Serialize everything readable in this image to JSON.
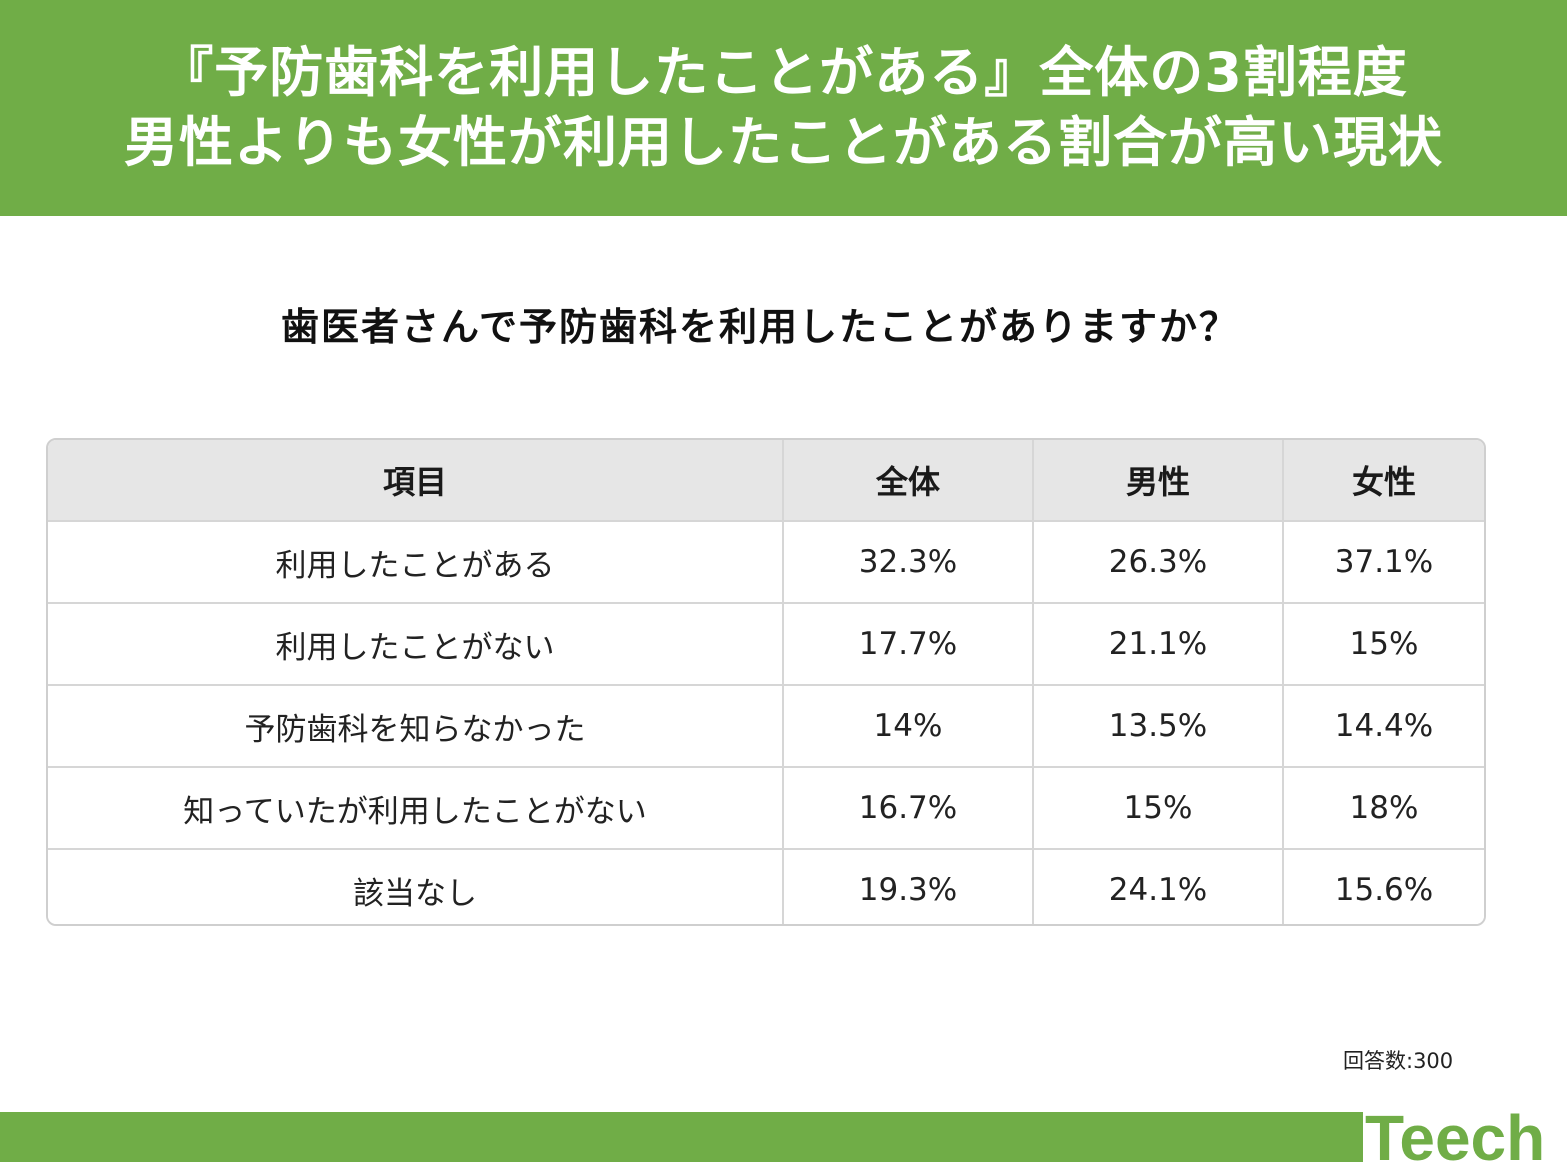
{
  "header": {
    "line1": "『予防歯科を利用したことがある』全体の3割程度",
    "line2": "男性よりも女性が利用したことがある割合が高い現状"
  },
  "question": "歯医者さんで予防歯科を利用したことがありますか？",
  "table": {
    "headers": [
      "項目",
      "全体",
      "男性",
      "女性"
    ],
    "rows": [
      [
        "利用したことがある",
        "32.3%",
        "26.3%",
        "37.1%"
      ],
      [
        "利用したことがない",
        "17.7%",
        "21.1%",
        "15%"
      ],
      [
        "予防歯科を知らなかった",
        "14%",
        "13.5%",
        "14.4%"
      ],
      [
        "知っていたが利用したことがない",
        "16.7%",
        "15%",
        "18%"
      ],
      [
        "該当なし",
        "19.3%",
        "24.1%",
        "15.6%"
      ]
    ]
  },
  "respondents": "回答数:300",
  "logo": {
    "text": "Teech",
    "icon": "teech-logo-icon"
  },
  "colors": {
    "brand_green": "#70ad47",
    "header_cell": "#e6e6e6",
    "grid": "#d6d6d6"
  }
}
